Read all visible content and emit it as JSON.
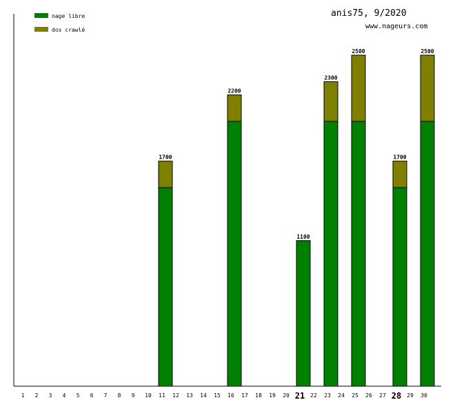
{
  "header": {
    "title": "anis75, 9/2020",
    "subtitle": "www.nageurs.com"
  },
  "colors": {
    "nage_libre": "#008000",
    "dos_crawle": "#808000",
    "axis": "#000000"
  },
  "chart_data": {
    "type": "bar",
    "stacked": true,
    "title": "anis75, 9/2020",
    "xlabel": "",
    "ylabel": "",
    "ylim": [
      0,
      2500
    ],
    "grid": false,
    "legend_position": "top-left",
    "categories": [
      "1",
      "2",
      "3",
      "4",
      "5",
      "6",
      "7",
      "8",
      "9",
      "10",
      "11",
      "12",
      "13",
      "14",
      "15",
      "16",
      "17",
      "18",
      "19",
      "20",
      "21",
      "22",
      "23",
      "24",
      "25",
      "26",
      "27",
      "28",
      "29",
      "30"
    ],
    "bold_categories": [
      "21",
      "28"
    ],
    "series": [
      {
        "name": "nage libre",
        "color": "#008000",
        "values": [
          0,
          0,
          0,
          0,
          0,
          0,
          0,
          0,
          0,
          0,
          1500,
          0,
          0,
          0,
          0,
          2000,
          0,
          0,
          0,
          0,
          1100,
          0,
          2000,
          0,
          2000,
          0,
          0,
          1500,
          0,
          2000
        ]
      },
      {
        "name": "dos crawlé",
        "color": "#808000",
        "values": [
          0,
          0,
          0,
          0,
          0,
          0,
          0,
          0,
          0,
          0,
          200,
          0,
          0,
          0,
          0,
          200,
          0,
          0,
          0,
          0,
          0,
          0,
          300,
          0,
          500,
          0,
          0,
          200,
          0,
          500
        ]
      }
    ],
    "totals": [
      "",
      "",
      "",
      "",
      "",
      "",
      "",
      "",
      "",
      "",
      "1700",
      "",
      "",
      "",
      "",
      "2200",
      "",
      "",
      "",
      "",
      "1100",
      "",
      "2300",
      "",
      "2500",
      "",
      "",
      "1700",
      "",
      "2500"
    ]
  }
}
